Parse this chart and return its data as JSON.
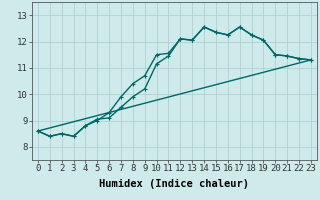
{
  "xlabel": "Humidex (Indice chaleur)",
  "xlim": [
    -0.5,
    23.5
  ],
  "ylim": [
    7.5,
    13.5
  ],
  "yticks": [
    8,
    9,
    10,
    11,
    12,
    13
  ],
  "xticks": [
    0,
    1,
    2,
    3,
    4,
    5,
    6,
    7,
    8,
    9,
    10,
    11,
    12,
    13,
    14,
    15,
    16,
    17,
    18,
    19,
    20,
    21,
    22,
    23
  ],
  "background_color": "#ceeaea",
  "grid_color": "#aacccc",
  "line_color": "#006666",
  "line1_x": [
    0,
    1,
    2,
    3,
    4,
    5,
    6,
    7,
    8,
    9,
    10,
    11,
    12,
    13,
    14,
    15,
    16,
    17,
    18,
    19,
    20,
    21,
    22,
    23
  ],
  "line1_y": [
    8.6,
    8.4,
    8.5,
    8.4,
    8.8,
    9.0,
    9.3,
    9.9,
    10.4,
    10.7,
    11.5,
    11.55,
    12.1,
    12.05,
    12.55,
    12.35,
    12.25,
    12.55,
    12.25,
    12.05,
    11.5,
    11.45,
    11.35,
    11.3
  ],
  "line2_x": [
    0,
    1,
    2,
    3,
    4,
    5,
    6,
    7,
    8,
    9,
    10,
    11,
    12,
    13,
    14,
    15,
    16,
    17,
    18,
    19,
    20,
    21,
    22,
    23
  ],
  "line2_y": [
    8.6,
    8.4,
    8.5,
    8.4,
    8.8,
    9.05,
    9.1,
    9.5,
    9.9,
    10.2,
    11.15,
    11.45,
    12.1,
    12.05,
    12.55,
    12.35,
    12.25,
    12.55,
    12.25,
    12.05,
    11.5,
    11.45,
    11.35,
    11.3
  ],
  "line3_x": [
    0,
    23
  ],
  "line3_y": [
    8.6,
    11.3
  ],
  "marker_size": 3.5,
  "linewidth": 1.0,
  "xlabel_fontsize": 7.5,
  "tick_fontsize": 6.5
}
